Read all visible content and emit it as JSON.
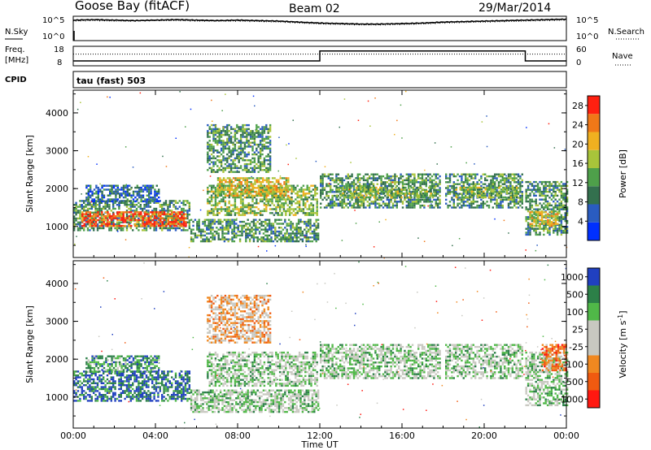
{
  "header": {
    "station": "Goose Bay (fitACF)",
    "beam": "Beam 02",
    "date": "29/Mar/2014"
  },
  "strips": {
    "nsky_label": "N.Sky",
    "nsearch_label": "N.Search",
    "freq_label_1": "Freq.",
    "freq_label_2": "[MHz]",
    "nave_label": "Nave",
    "cpid_label": "CPID",
    "cpid_value": "tau (fast) 503",
    "noise_ticks": [
      "10^5",
      "10^0"
    ],
    "freq_ticks": [
      "18",
      "8"
    ],
    "nave_ticks": [
      "60",
      "0"
    ]
  },
  "chart_data": [
    {
      "type": "line",
      "name": "noise",
      "x": [
        0,
        1,
        2,
        3,
        4,
        5,
        6,
        7,
        8,
        9,
        10,
        11,
        12,
        13,
        14,
        15,
        16,
        17,
        18,
        19,
        20,
        21,
        22,
        23,
        24
      ],
      "series": [
        {
          "name": "N.Sky",
          "values": [
            4.2,
            4.3,
            4.2,
            4.1,
            4.2,
            4.3,
            4.2,
            4.1,
            4.2,
            4.1,
            4.0,
            3.8,
            3.6,
            3.5,
            3.4,
            3.4,
            3.5,
            3.6,
            3.8,
            3.9,
            4.0,
            4.1,
            4.2,
            4.3,
            4.4
          ]
        },
        {
          "name": "N.Search",
          "values": [
            4.0,
            4.1,
            4.0,
            4.0,
            4.1,
            4.1,
            4.0,
            4.0,
            4.0,
            3.9,
            3.8,
            3.6,
            3.4,
            3.3,
            3.2,
            3.2,
            3.3,
            3.4,
            3.6,
            3.7,
            3.8,
            3.9,
            4.0,
            4.1,
            4.2
          ]
        }
      ],
      "ylim": [
        0,
        5
      ],
      "xlim": [
        0,
        24
      ]
    },
    {
      "type": "line",
      "name": "frequency-nave",
      "series": [
        {
          "name": "Freq",
          "x": [
            0,
            12,
            12,
            22,
            22,
            24
          ],
          "values": [
            10.5,
            10.5,
            15.6,
            15.6,
            10.5,
            10.5
          ]
        },
        {
          "name": "Nave",
          "x": [
            0,
            24
          ],
          "values": [
            14,
            14
          ]
        }
      ],
      "ylim": [
        8,
        18
      ],
      "xlim": [
        0,
        24
      ]
    },
    {
      "type": "heatmap",
      "name": "power",
      "xlabel": "",
      "ylabel": "Slant Range [km]",
      "xlim": [
        0,
        24
      ],
      "ylim": [
        180,
        4600
      ],
      "yticks": [
        1000,
        2000,
        3000,
        4000
      ],
      "colorbar": {
        "label": "Power [dB]",
        "ticks": [
          4,
          8,
          12,
          16,
          20,
          24,
          28
        ],
        "range": [
          0,
          30
        ],
        "colors": [
          "#0030ff",
          "#2a5cc0",
          "#33704e",
          "#4ea04a",
          "#a8c43a",
          "#f0b020",
          "#f07818",
          "#ff2010"
        ]
      },
      "regions": [
        {
          "t": [
            0.0,
            5.7
          ],
          "r": [
            880,
            1700
          ],
          "level": 3
        },
        {
          "t": [
            0.4,
            5.5
          ],
          "r": [
            1000,
            1400
          ],
          "level": 7
        },
        {
          "t": [
            0.6,
            4.2
          ],
          "r": [
            1650,
            2100
          ],
          "level": 2
        },
        {
          "t": [
            5.7,
            11.9
          ],
          "r": [
            600,
            1200
          ],
          "level": 3
        },
        {
          "t": [
            6.5,
            11.9
          ],
          "r": [
            1300,
            2100
          ],
          "level": 4
        },
        {
          "t": [
            7.0,
            10.5
          ],
          "r": [
            1800,
            2300
          ],
          "level": 5
        },
        {
          "t": [
            6.5,
            9.6
          ],
          "r": [
            2450,
            3700
          ],
          "level": 3
        },
        {
          "t": [
            12.0,
            17.8
          ],
          "r": [
            1500,
            2400
          ],
          "level": 3
        },
        {
          "t": [
            12.8,
            17.6
          ],
          "r": [
            1750,
            2050
          ],
          "level": 4
        },
        {
          "t": [
            18.1,
            21.9
          ],
          "r": [
            1500,
            2400
          ],
          "level": 3
        },
        {
          "t": [
            18.6,
            21.6
          ],
          "r": [
            1750,
            2050
          ],
          "level": 4
        },
        {
          "t": [
            22.0,
            24.0
          ],
          "r": [
            800,
            2200
          ],
          "level": 3
        },
        {
          "t": [
            22.2,
            23.6
          ],
          "r": [
            1000,
            1400
          ],
          "level": 5
        }
      ]
    },
    {
      "type": "heatmap",
      "name": "velocity",
      "xlabel": "Time UT",
      "ylabel": "Slant Range [km]",
      "xlim": [
        0,
        24
      ],
      "ylim": [
        180,
        4600
      ],
      "yticks": [
        1000,
        2000,
        3000,
        4000
      ],
      "xticks": [
        "00:00",
        "04:00",
        "08:00",
        "12:00",
        "16:00",
        "20:00",
        "00:00"
      ],
      "colorbar": {
        "label": "Velocity [m s^-1]",
        "ticks": [
          1000,
          500,
          100,
          25,
          -25,
          -100,
          -500,
          -1000
        ],
        "colors": [
          "#2040c0",
          "#2c8048",
          "#50b848",
          "#c8c8c0",
          "#c8c8c0",
          "#f08820",
          "#f05a10",
          "#ff1810"
        ]
      },
      "regions": [
        {
          "t": [
            0.0,
            5.7
          ],
          "r": [
            880,
            1700
          ],
          "level": 1
        },
        {
          "t": [
            0.6,
            4.2
          ],
          "r": [
            1650,
            2100
          ],
          "level": 2
        },
        {
          "t": [
            5.7,
            11.9
          ],
          "r": [
            600,
            1200
          ],
          "level": 3
        },
        {
          "t": [
            6.5,
            11.9
          ],
          "r": [
            1300,
            2200
          ],
          "level": 3
        },
        {
          "t": [
            6.5,
            9.6
          ],
          "r": [
            2450,
            3700
          ],
          "level": 5
        },
        {
          "t": [
            12.0,
            17.8
          ],
          "r": [
            1500,
            2400
          ],
          "level": 3
        },
        {
          "t": [
            18.1,
            21.9
          ],
          "r": [
            1500,
            2400
          ],
          "level": 3
        },
        {
          "t": [
            22.0,
            24.0
          ],
          "r": [
            800,
            2200
          ],
          "level": 3
        },
        {
          "t": [
            22.8,
            24.0
          ],
          "r": [
            1700,
            2400
          ],
          "level": 6
        }
      ]
    }
  ]
}
